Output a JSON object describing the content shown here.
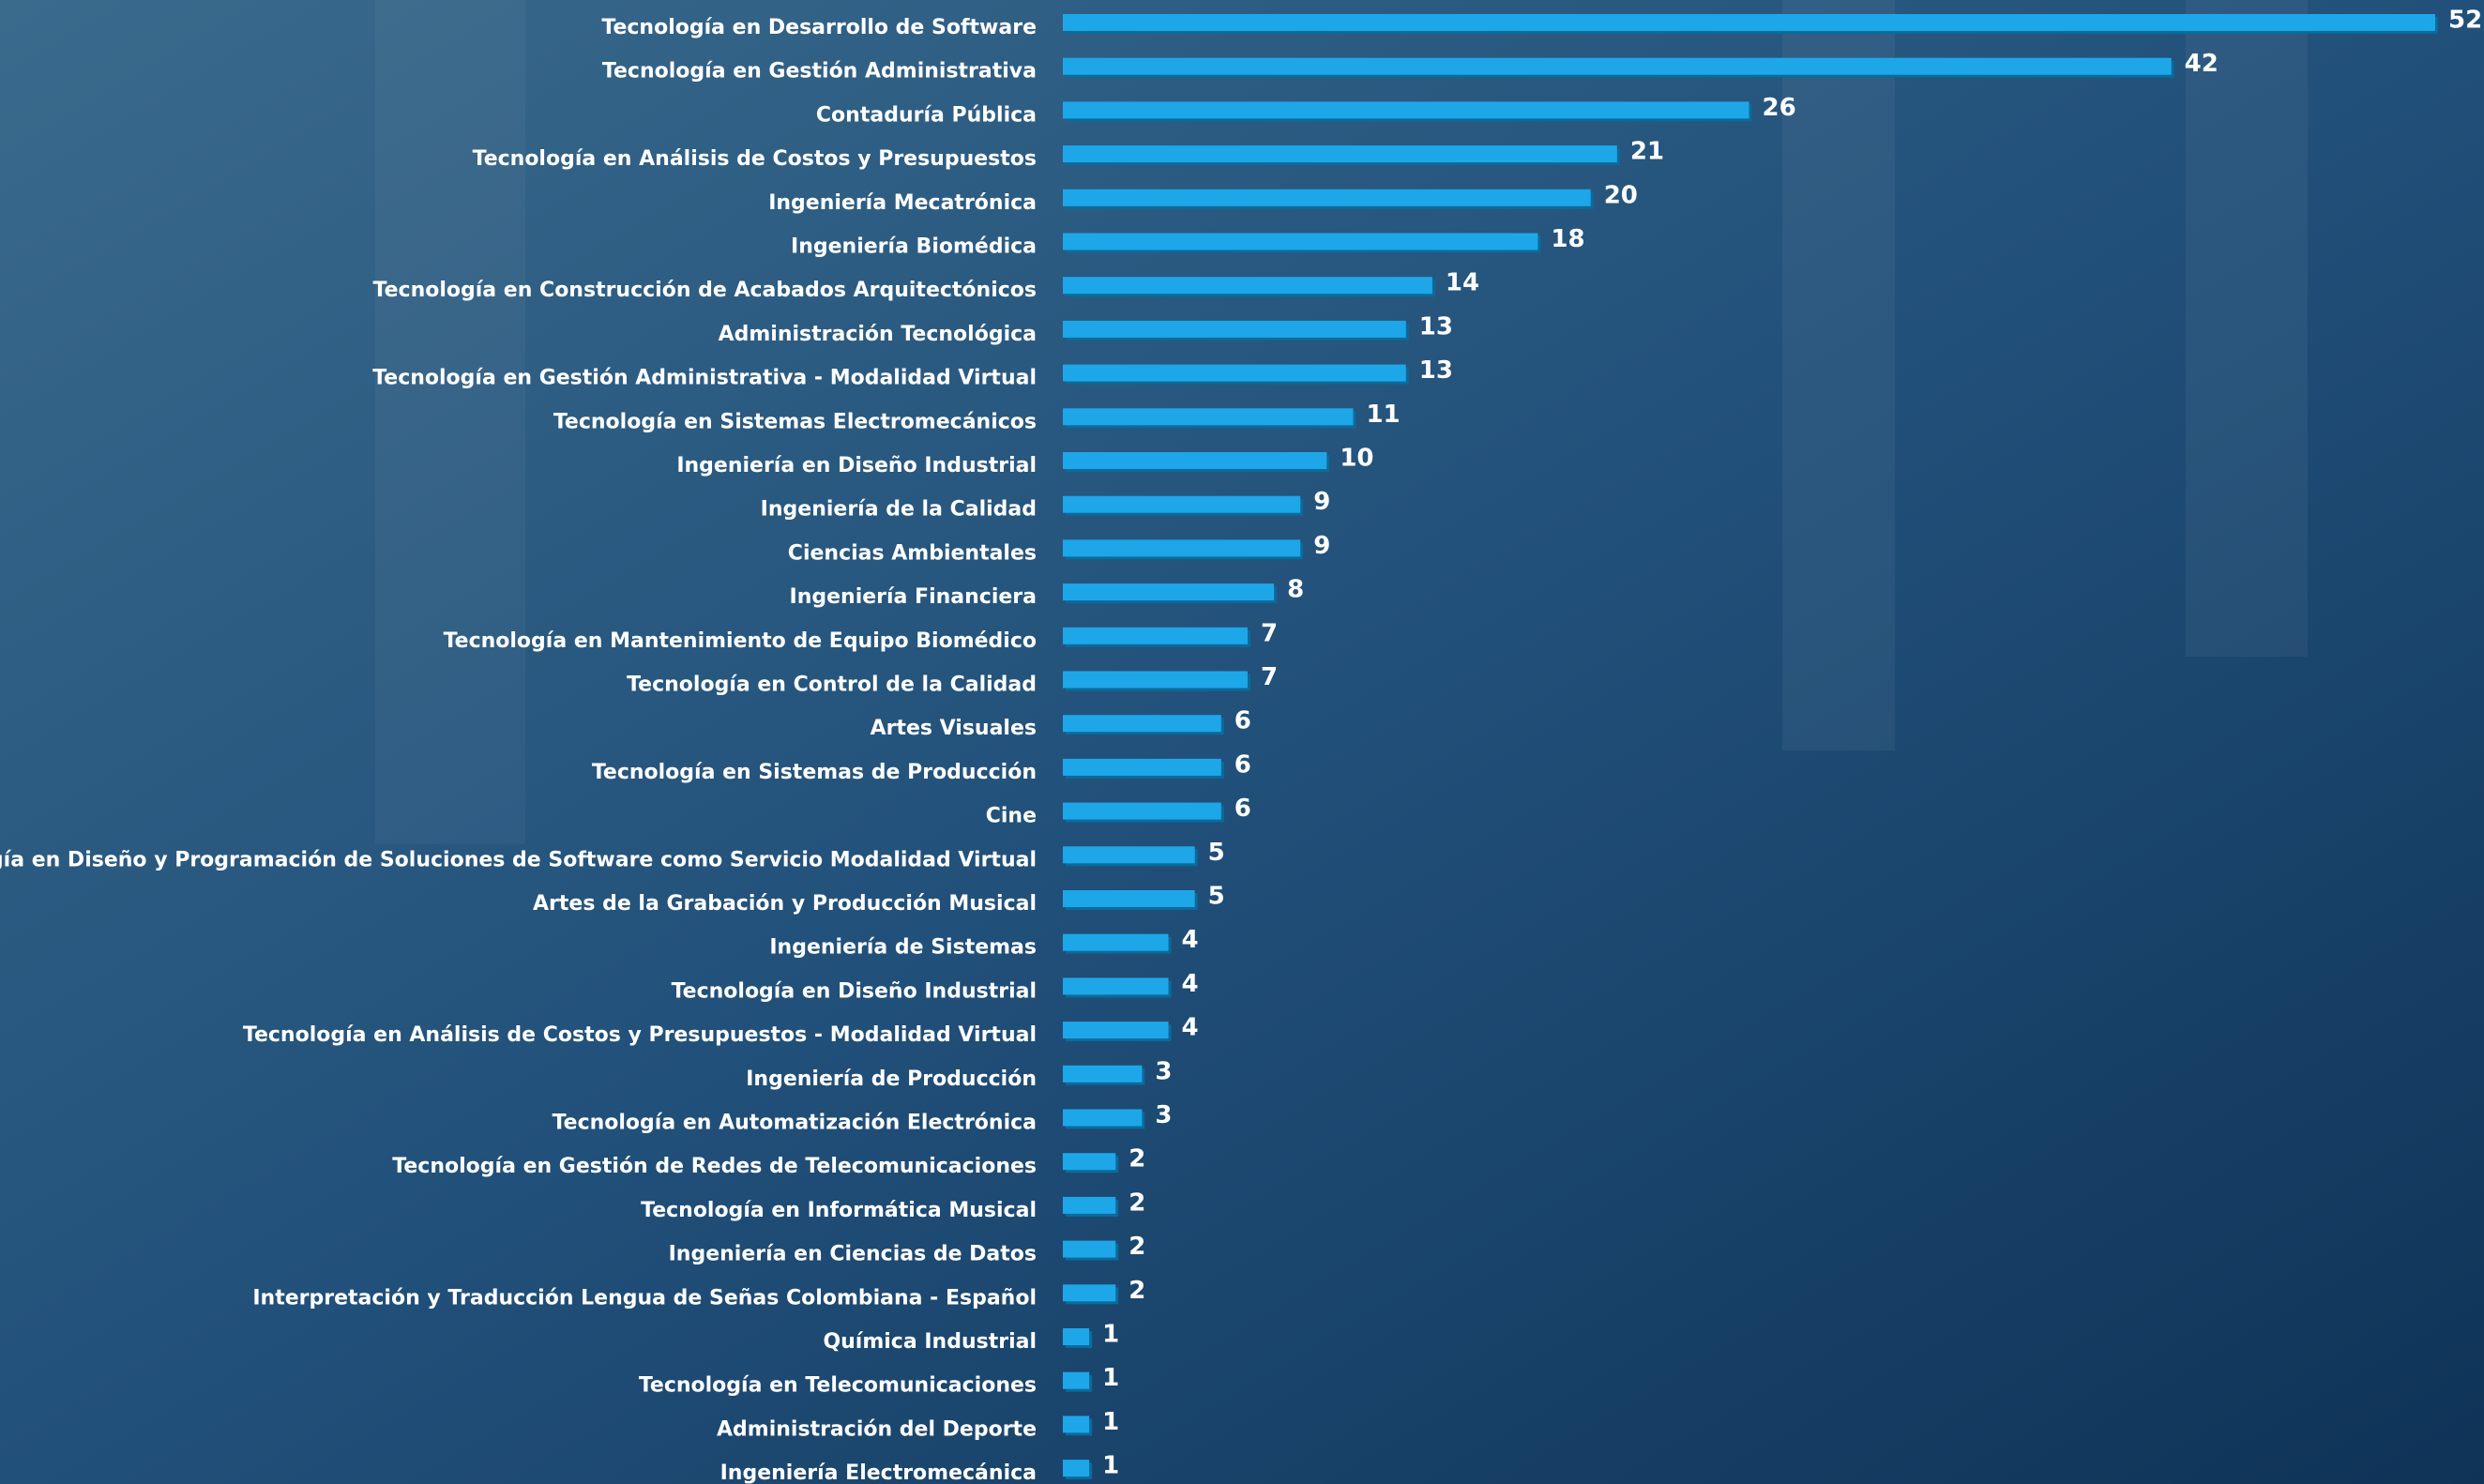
{
  "chart_data": {
    "type": "barh",
    "color": "#1ea7e8",
    "categories": [
      "Tecnología en Desarrollo de Software",
      "Tecnología en Gestión Administrativa",
      "Contaduría Pública",
      "Tecnología en Análisis de Costos y Presupuestos",
      "Ingeniería Mecatrónica",
      "Ingeniería Biomédica",
      "Tecnología en Construcción de Acabados Arquitectónicos",
      "Administración Tecnológica",
      "Tecnología en Gestión Administrativa - Modalidad Virtual",
      "Tecnología en Sistemas Electromecánicos",
      "Ingeniería en Diseño Industrial",
      "Ingeniería de la Calidad",
      "Ciencias Ambientales",
      "Ingeniería Financiera",
      "Tecnología en Mantenimiento de Equipo Biomédico",
      "Tecnología en Control de la Calidad",
      "Artes Visuales",
      "Tecnología en Sistemas de Producción",
      "Cine",
      "Tecnología en Diseño y Programación de Soluciones de Software como Servicio Modalidad Virtual",
      "Artes de la Grabación y Producción Musical",
      "Ingeniería de Sistemas",
      "Tecnología en Diseño Industrial",
      "Tecnología en Análisis de Costos y Presupuestos - Modalidad Virtual",
      "Ingeniería de Producción",
      "Tecnología en Automatización Electrónica",
      "Tecnología en Gestión de Redes de Telecomunicaciones",
      "Tecnología en Informática Musical",
      "Ingeniería en Ciencias de Datos",
      "Interpretación y Traducción Lengua de Señas Colombiana - Español",
      "Química Industrial",
      "Tecnología en Telecomunicaciones",
      "Administración del Deporte",
      "Ingeniería Electromecánica"
    ],
    "values": [
      52,
      42,
      26,
      21,
      20,
      18,
      14,
      13,
      13,
      11,
      10,
      9,
      9,
      8,
      7,
      7,
      6,
      6,
      6,
      5,
      5,
      4,
      4,
      4,
      3,
      3,
      2,
      2,
      2,
      2,
      1,
      1,
      1,
      1
    ]
  }
}
